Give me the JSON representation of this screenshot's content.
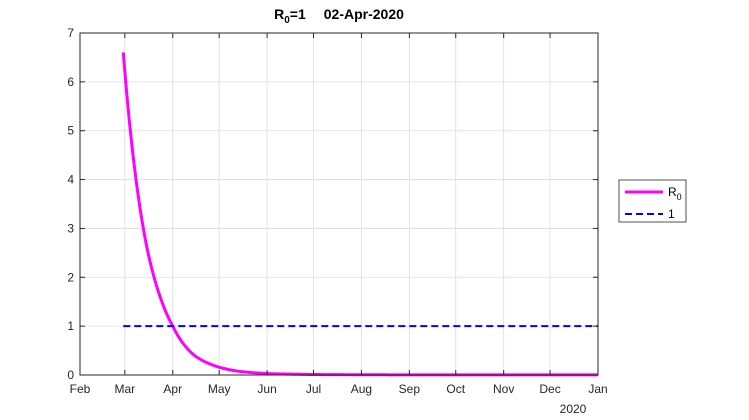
{
  "chart_data": {
    "type": "line",
    "title": {
      "r0_main": "R",
      "r0_sub": "0",
      "r0_suffix": "=1",
      "date": "02-Apr-2020"
    },
    "xlabel": "",
    "ylabel": "",
    "x_ticks": [
      "Feb",
      "Mar",
      "Apr",
      "May",
      "Jun",
      "Jul",
      "Aug",
      "Sep",
      "Oct",
      "Nov",
      "Dec",
      "Jan"
    ],
    "x_secondary_label": "2020",
    "y_ticks": [
      "0",
      "1",
      "2",
      "3",
      "4",
      "5",
      "6",
      "7"
    ],
    "xlim": [
      "2020-02-01",
      "2021-01-01"
    ],
    "ylim": [
      0,
      7
    ],
    "grid": true,
    "legend_position": "outside-right",
    "series": [
      {
        "name": "R",
        "name_sub": "0",
        "color": "#ff00ff",
        "style": "solid",
        "x": [
          "2020-02-29",
          "2020-03-15",
          "2020-04-01",
          "2020-04-15",
          "2020-05-01",
          "2020-05-15",
          "2020-06-01",
          "2020-07-01",
          "2020-08-01",
          "2020-09-01",
          "2020-10-01",
          "2020-11-01",
          "2020-12-01",
          "2021-01-01"
        ],
        "y": [
          6.6,
          2.65,
          1.0,
          0.4,
          0.16,
          0.07,
          0.03,
          0.01,
          0.005,
          0.003,
          0.002,
          0.002,
          0.002,
          0.002
        ]
      },
      {
        "name": "1",
        "color": "#0000ff",
        "style": "dashed",
        "x": [
          "2020-02-29",
          "2021-01-01"
        ],
        "y": [
          1,
          1
        ]
      }
    ]
  }
}
